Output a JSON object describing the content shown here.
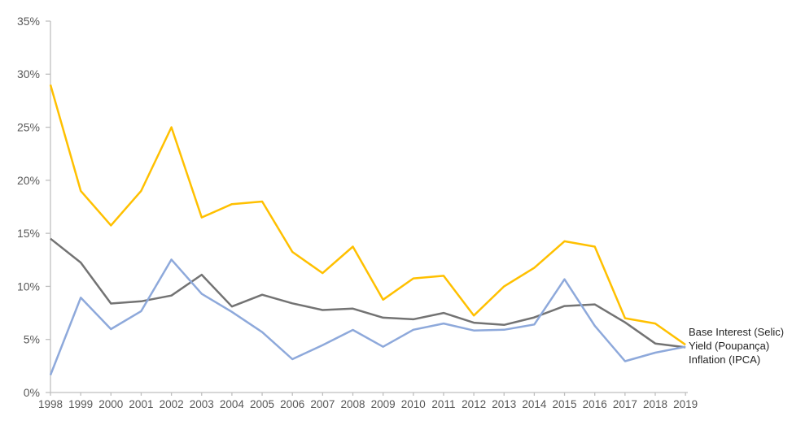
{
  "chart_data": {
    "type": "line",
    "title": "",
    "xlabel": "",
    "ylabel": "",
    "x": [
      1998,
      1999,
      2000,
      2001,
      2002,
      2003,
      2004,
      2005,
      2006,
      2007,
      2008,
      2009,
      2010,
      2011,
      2012,
      2013,
      2014,
      2015,
      2016,
      2017,
      2018,
      2019
    ],
    "series": [
      {
        "id": "selic",
        "name": "Base Interest (Selic)",
        "color": "#FFC000",
        "values": [
          29.0,
          19.0,
          15.75,
          19.0,
          25.0,
          16.5,
          17.75,
          18.0,
          13.25,
          11.25,
          13.75,
          8.75,
          10.75,
          11.0,
          7.25,
          10.0,
          11.75,
          14.25,
          13.75,
          7.0,
          6.5,
          4.5
        ]
      },
      {
        "id": "poupanca",
        "name": "Yield (Poupança)",
        "color": "#737373",
        "values": [
          14.5,
          12.25,
          8.39,
          8.59,
          9.14,
          11.1,
          8.1,
          9.21,
          8.4,
          7.77,
          7.9,
          7.05,
          6.9,
          7.5,
          6.58,
          6.37,
          7.08,
          8.15,
          8.3,
          6.61,
          4.62,
          4.26
        ]
      },
      {
        "id": "ipca",
        "name": "Inflation (IPCA)",
        "color": "#8EA9DB",
        "values": [
          1.65,
          8.94,
          5.97,
          7.67,
          12.53,
          9.3,
          7.6,
          5.69,
          3.14,
          4.46,
          5.9,
          4.31,
          5.91,
          6.5,
          5.84,
          5.91,
          6.41,
          10.67,
          6.29,
          2.95,
          3.75,
          4.31
        ]
      }
    ],
    "y_axis": {
      "min": 0,
      "max": 35,
      "step": 5,
      "unit": "%",
      "tick_labels": [
        "0%",
        "5%",
        "10%",
        "15%",
        "20%",
        "25%",
        "30%",
        "35%"
      ]
    },
    "x_axis": {
      "tick_labels": [
        "1998",
        "1999",
        "2000",
        "2001",
        "2002",
        "2003",
        "2004",
        "2005",
        "2006",
        "2007",
        "2008",
        "2009",
        "2010",
        "2011",
        "2012",
        "2013",
        "2014",
        "2015",
        "2016",
        "2017",
        "2018",
        "2019"
      ]
    },
    "grid": false,
    "legend": {
      "position": "right-end-labels",
      "entries": [
        "Base Interest (Selic)",
        "Yield (Poupança)",
        "Inflation (IPCA)"
      ]
    },
    "colors": {
      "axis": "#BFBFBF",
      "tick_labels": "#595959",
      "legend_text": "#1F1F1F",
      "background": "#FFFFFF"
    }
  }
}
